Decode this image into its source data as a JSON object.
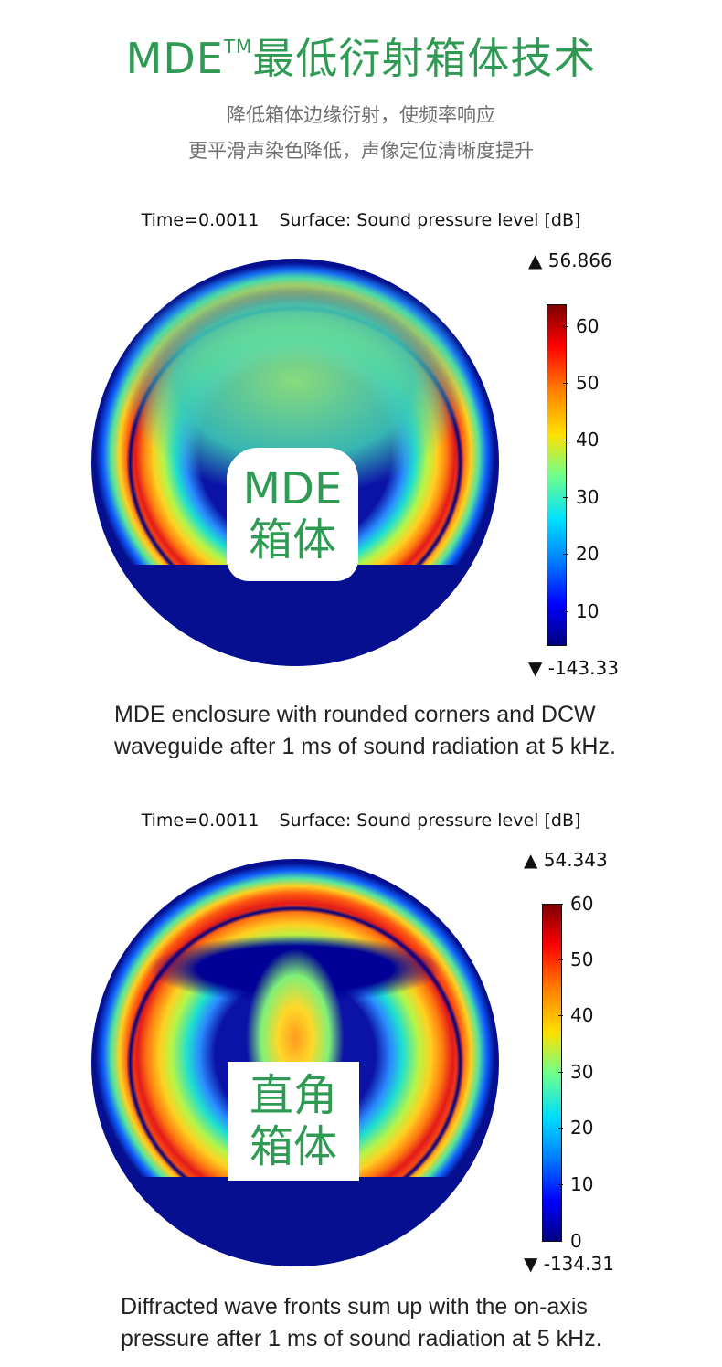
{
  "header": {
    "title": "MDE",
    "title_mark": "TM",
    "title_rest": "最低衍射箱体技术",
    "subtitle_line1": "降低箱体边缘衍射，使频率响应",
    "subtitle_line2": "更平滑声染色降低，声像定位清晰度提升"
  },
  "figure1": {
    "time_label": "Time=0.0011",
    "surface_label": "Surface: Sound pressure level [dB]",
    "max_value": "▲ 56.866",
    "min_value": "▼ -143.33",
    "ticks": [
      "60",
      "50",
      "40",
      "30",
      "20",
      "10"
    ],
    "box_line1": "MDE",
    "box_line2": "箱体",
    "caption_line1": "MDE enclosure with rounded corners and DCW",
    "caption_line2": "waveguide after 1 ms of sound radiation at 5 kHz."
  },
  "figure2": {
    "time_label": "Time=0.0011",
    "surface_label": "Surface: Sound pressure level [dB]",
    "max_value": "▲ 54.343",
    "min_value": "▼ -134.31",
    "ticks": [
      "60",
      "50",
      "40",
      "30",
      "20",
      "10",
      "0"
    ],
    "box_line1": "直角",
    "box_line2": "箱体",
    "caption_line1": "Diffracted wave fronts sum up with the on-axis",
    "caption_line2": "pressure after 1 ms of sound radiation at 5 kHz."
  },
  "colors": {
    "accent_green": "#2f9a53",
    "subtitle_gray": "#6f6f6f"
  }
}
